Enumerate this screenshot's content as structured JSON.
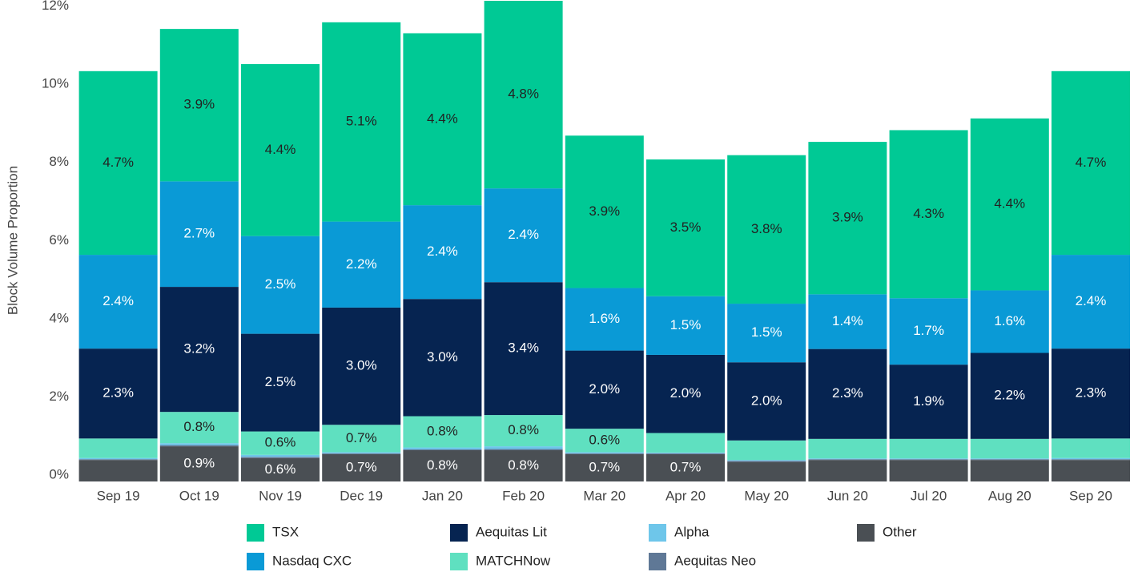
{
  "chart_data": {
    "type": "stacked_bar",
    "y_label": "Block Volume Proportion",
    "categories": [
      "Sep 19",
      "Oct 19",
      "Nov 19",
      "Dec 19",
      "Jan 20",
      "Feb 20",
      "Mar 20",
      "Apr 20",
      "May 20",
      "Jun 20",
      "Jul 20",
      "Aug 20",
      "Sep 20"
    ],
    "series": [
      {
        "name": "TSX",
        "color": "#00c995",
        "values": [
          4.7,
          3.9,
          4.4,
          5.1,
          4.4,
          4.8,
          3.9,
          3.5,
          3.8,
          3.9,
          4.3,
          4.4,
          4.7
        ],
        "value_labels": [
          "4.7%",
          "3.9%",
          "4.4%",
          "5.1%",
          "4.4%",
          "4.8%",
          "3.9%",
          "3.5%",
          "3.8%",
          "3.9%",
          "4.3%",
          "4.4%",
          "4.7%"
        ]
      },
      {
        "name": "Nasdaq CXC",
        "color": "#0a9ad6",
        "values": [
          2.4,
          2.7,
          2.5,
          2.2,
          2.4,
          2.4,
          1.6,
          1.5,
          1.5,
          1.4,
          1.7,
          1.6,
          2.4
        ],
        "value_labels": [
          "2.4%",
          "2.7%",
          "2.5%",
          "2.2%",
          "2.4%",
          "2.4%",
          "1.6%",
          "1.5%",
          "1.5%",
          "1.4%",
          "1.7%",
          "1.6%",
          "2.4%"
        ]
      },
      {
        "name": "Aequitas Lit",
        "color": "#062451",
        "values": [
          2.3,
          3.2,
          2.5,
          3.0,
          3.0,
          3.4,
          2.0,
          2.0,
          2.0,
          2.3,
          1.9,
          2.2,
          2.3
        ],
        "value_labels": [
          "2.3%",
          "3.2%",
          "2.5%",
          "3.0%",
          "3.0%",
          "3.4%",
          "2.0%",
          "2.0%",
          "2.0%",
          "2.3%",
          "1.9%",
          "2.2%",
          "2.3%"
        ]
      },
      {
        "name": "MATCHNow",
        "color": "#5fe0c0",
        "values": [
          0.5,
          0.8,
          0.6,
          0.7,
          0.8,
          0.8,
          0.6,
          0.5,
          0.5,
          0.5,
          0.5,
          0.5,
          0.5
        ],
        "value_labels": [
          null,
          "0.8%",
          "0.6%",
          "0.7%",
          "0.8%",
          "0.8%",
          "0.6%",
          null,
          null,
          null,
          null,
          null,
          null
        ]
      },
      {
        "name": "Alpha",
        "color": "#6ec6ea",
        "values": [
          0.03,
          0.05,
          0.05,
          0.03,
          0.05,
          0.07,
          0.03,
          0.02,
          0.02,
          0.02,
          0.02,
          0.02,
          0.03
        ]
      },
      {
        "name": "Aequitas Neo",
        "color": "#5f7896",
        "values": [
          0.02,
          0.03,
          0.03,
          0.02,
          0.02,
          0.03,
          0.02,
          0.02,
          0.03,
          0.02,
          0.02,
          0.02,
          0.02
        ]
      },
      {
        "name": "Other",
        "color": "#4a4f54",
        "values": [
          0.55,
          0.9,
          0.6,
          0.7,
          0.8,
          0.8,
          0.7,
          0.7,
          0.5,
          0.55,
          0.55,
          0.55,
          0.55
        ],
        "value_labels": [
          null,
          "0.9%",
          "0.6%",
          "0.7%",
          "0.8%",
          "0.8%",
          "0.7%",
          "0.7%",
          null,
          null,
          null,
          null,
          null
        ]
      }
    ],
    "ylim": [
      0,
      12.3
    ],
    "yticks": [
      {
        "value": 0,
        "label": "0%"
      },
      {
        "value": 2,
        "label": "2%"
      },
      {
        "value": 4,
        "label": "4%"
      },
      {
        "value": 6,
        "label": "6%"
      },
      {
        "value": 8,
        "label": "8%"
      },
      {
        "value": 10,
        "label": "10%"
      },
      {
        "value": 12,
        "label": "12%"
      }
    ]
  }
}
